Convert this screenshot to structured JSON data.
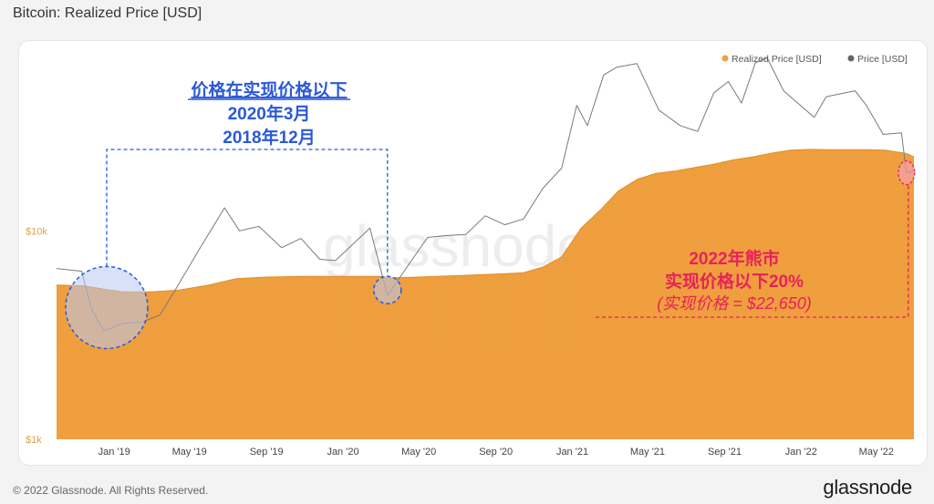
{
  "title": "Bitcoin: Realized Price [USD]",
  "footer": {
    "copyright": "© 2022 Glassnode. All Rights Reserved.",
    "brand": "glassnode"
  },
  "watermark": "glassnode",
  "colors": {
    "realized": "#f0a040",
    "price": "#888888",
    "blue": "#2b59d6",
    "pink": "#e8215c",
    "yaxis": "#e0a24a",
    "highlight_blue": "#b9c9f2"
  },
  "annotations": {
    "blue": {
      "line1": "价格在实现价格以下",
      "line2": "2020年3月",
      "line3": "2018年12月"
    },
    "pink": {
      "line1": "2022年熊市",
      "line2": "实现价格以下20%",
      "line3": "(实现价格 = $22,650)"
    }
  },
  "chart_data": {
    "type": "area",
    "title": "Bitcoin: Realized Price [USD]",
    "y_scale": "log",
    "ylim": [
      1000,
      70000
    ],
    "y_ticks": [
      {
        "value": 1000,
        "label": "$1k"
      },
      {
        "value": 10000,
        "label": "$10k"
      }
    ],
    "x_start": "2018-10-01",
    "x_end": "2022-06-30",
    "x_ticks": [
      {
        "date": "2019-01-01",
        "label": "Jan '19"
      },
      {
        "date": "2019-05-01",
        "label": "May '19"
      },
      {
        "date": "2019-09-01",
        "label": "Sep '19"
      },
      {
        "date": "2020-01-01",
        "label": "Jan '20"
      },
      {
        "date": "2020-05-01",
        "label": "May '20"
      },
      {
        "date": "2020-09-01",
        "label": "Sep '20"
      },
      {
        "date": "2021-01-01",
        "label": "Jan '21"
      },
      {
        "date": "2021-05-01",
        "label": "May '21"
      },
      {
        "date": "2021-09-01",
        "label": "Sep '21"
      },
      {
        "date": "2022-01-01",
        "label": "Jan '22"
      },
      {
        "date": "2022-05-01",
        "label": "May '22"
      }
    ],
    "legend_position": "top-right",
    "series": [
      {
        "name": "Realized Price [USD]",
        "style": "area",
        "x": [
          "2018-10-01",
          "2018-11-15",
          "2018-12-15",
          "2019-01-15",
          "2019-03-01",
          "2019-04-15",
          "2019-06-01",
          "2019-07-15",
          "2019-09-01",
          "2019-11-01",
          "2020-01-01",
          "2020-03-01",
          "2020-03-15",
          "2020-05-01",
          "2020-07-01",
          "2020-09-01",
          "2020-10-15",
          "2020-11-15",
          "2020-12-15",
          "2021-01-15",
          "2021-02-15",
          "2021-03-15",
          "2021-04-15",
          "2021-05-15",
          "2021-06-15",
          "2021-07-15",
          "2021-08-15",
          "2021-09-15",
          "2021-10-15",
          "2021-11-15",
          "2021-12-15",
          "2022-01-15",
          "2022-02-15",
          "2022-03-15",
          "2022-04-15",
          "2022-05-15",
          "2022-06-18",
          "2022-06-30"
        ],
        "y": [
          5500,
          5450,
          5250,
          5100,
          5100,
          5200,
          5500,
          5900,
          6000,
          6050,
          6050,
          6050,
          5950,
          6000,
          6100,
          6200,
          6300,
          6700,
          7500,
          10300,
          12600,
          15500,
          17700,
          18900,
          19400,
          20100,
          20900,
          21900,
          22600,
          23600,
          24400,
          24600,
          24500,
          24500,
          24500,
          24400,
          23500,
          22650
        ]
      },
      {
        "name": "Price [USD]",
        "style": "line",
        "x": [
          "2018-10-01",
          "2018-11-10",
          "2018-11-25",
          "2018-12-15",
          "2019-01-15",
          "2019-02-15",
          "2019-03-15",
          "2019-04-05",
          "2019-05-15",
          "2019-06-26",
          "2019-07-20",
          "2019-08-20",
          "2019-09-25",
          "2019-10-26",
          "2019-11-25",
          "2019-12-20",
          "2020-02-13",
          "2020-03-12",
          "2020-04-15",
          "2020-05-15",
          "2020-06-15",
          "2020-07-15",
          "2020-08-15",
          "2020-09-15",
          "2020-10-15",
          "2020-11-15",
          "2020-12-15",
          "2021-01-08",
          "2021-01-25",
          "2021-02-20",
          "2021-03-13",
          "2021-04-14",
          "2021-05-19",
          "2021-06-22",
          "2021-07-20",
          "2021-08-15",
          "2021-09-07",
          "2021-09-28",
          "2021-10-20",
          "2021-11-08",
          "2021-12-04",
          "2022-01-22",
          "2022-02-10",
          "2022-03-28",
          "2022-04-15",
          "2022-05-12",
          "2022-06-10",
          "2022-06-18",
          "2022-06-30"
        ],
        "y": [
          6600,
          6400,
          4300,
          3300,
          3600,
          3650,
          3950,
          5000,
          8000,
          12900,
          10000,
          10500,
          8300,
          9200,
          7300,
          7200,
          10300,
          4900,
          6900,
          9300,
          9500,
          9600,
          11800,
          10700,
          11400,
          16000,
          20000,
          40000,
          32000,
          56000,
          61000,
          63500,
          38000,
          32000,
          30000,
          46000,
          52000,
          41000,
          64000,
          67500,
          47000,
          35000,
          44000,
          47000,
          40000,
          29000,
          29500,
          19000,
          19300
        ]
      }
    ]
  }
}
